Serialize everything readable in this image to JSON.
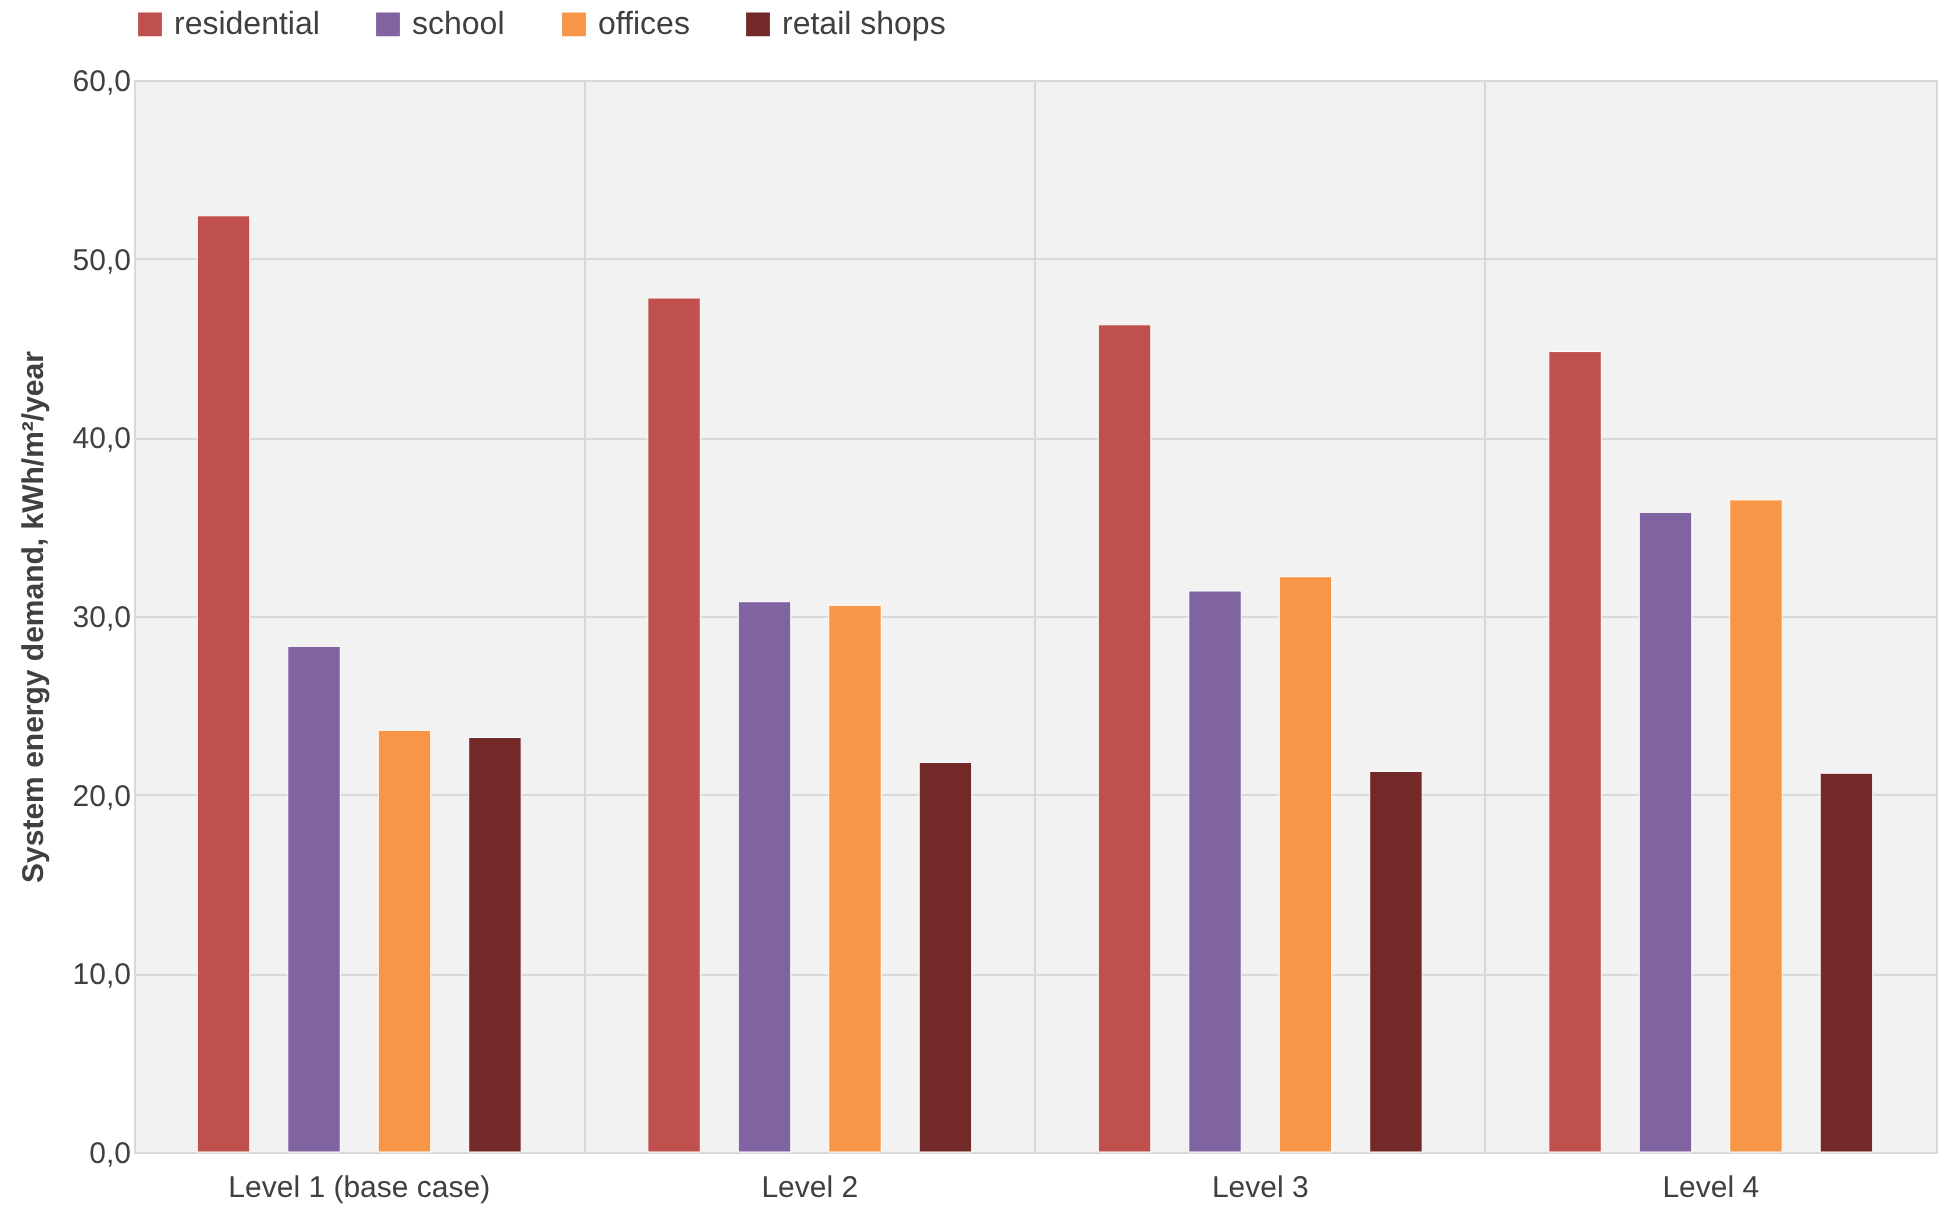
{
  "chart_data": {
    "type": "bar",
    "ylabel": "System energy demand, kWh/m²/year",
    "categories": [
      "Level 1 (base case)",
      "Level 2",
      "Level 3",
      "Level 4"
    ],
    "series": [
      {
        "name": "residential",
        "color": "#c0504d",
        "values": [
          52.4,
          47.8,
          46.3,
          44.8
        ]
      },
      {
        "name": "school",
        "color": "#8064a2",
        "values": [
          28.3,
          30.8,
          31.4,
          35.8
        ]
      },
      {
        "name": "offices",
        "color": "#f79646",
        "values": [
          23.6,
          30.6,
          32.2,
          36.5
        ]
      },
      {
        "name": "retail shops",
        "color": "#722928",
        "values": [
          23.2,
          21.8,
          21.3,
          21.2
        ]
      }
    ],
    "ylim": [
      0,
      60
    ],
    "yticks": [
      {
        "value": 0,
        "label": "0,0"
      },
      {
        "value": 10,
        "label": "10,0"
      },
      {
        "value": 20,
        "label": "20,0"
      },
      {
        "value": 30,
        "label": "30,0"
      },
      {
        "value": 40,
        "label": "40,0"
      },
      {
        "value": 50,
        "label": "50,0"
      },
      {
        "value": 60,
        "label": "60,0"
      }
    ],
    "grid": true,
    "legend": "top"
  }
}
